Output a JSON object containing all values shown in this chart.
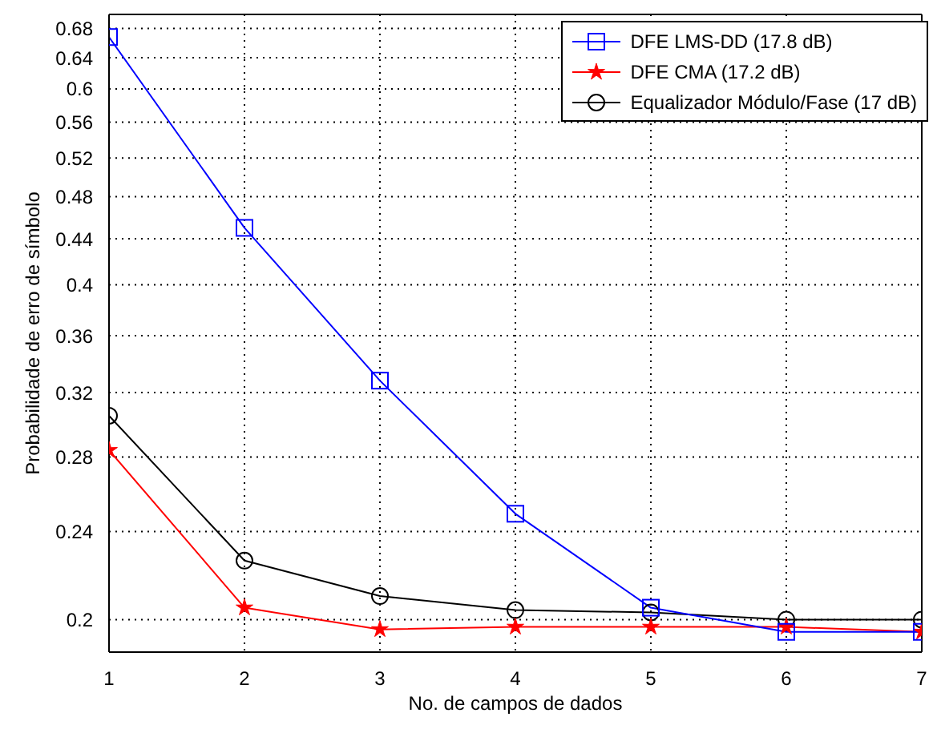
{
  "chart_data": {
    "type": "line",
    "xlabel": "No. de campos de dados",
    "ylabel": "Probabilidade de erro de símbolo",
    "x": [
      1,
      2,
      3,
      4,
      5,
      6,
      7
    ],
    "series": [
      {
        "name": "DFE LMS-DD (17.8 dB)",
        "color": "#0000ff",
        "marker": "square",
        "values": [
          0.668,
          0.45,
          0.328,
          0.249,
          0.205,
          0.195,
          0.195
        ]
      },
      {
        "name": "DFE CMA (17.2 dB)",
        "color": "#ff0000",
        "marker": "star",
        "values": [
          0.284,
          0.205,
          0.196,
          0.197,
          0.197,
          0.197,
          0.195
        ]
      },
      {
        "name": "Equalizador Módulo/Fase (17 dB)",
        "color": "#000000",
        "marker": "circle",
        "values": [
          0.305,
          0.226,
          0.21,
          0.204,
          0.203,
          0.2,
          0.2
        ]
      }
    ],
    "xlim": [
      1,
      7
    ],
    "xticks": [
      1,
      2,
      3,
      4,
      5,
      6,
      7
    ],
    "ylim": [
      0.187,
      0.7
    ],
    "yticks": [
      0.2,
      0.24,
      0.28,
      0.32,
      0.36,
      0.4,
      0.44,
      0.48,
      0.52,
      0.56,
      0.6,
      0.64,
      0.68
    ],
    "log": "y",
    "grid": true,
    "legend": "top right",
    "line_style": "solid"
  }
}
